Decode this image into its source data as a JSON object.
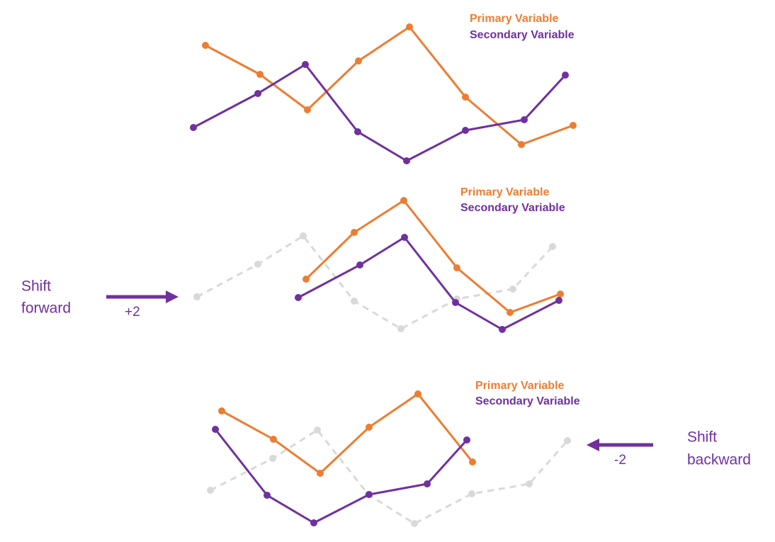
{
  "panels": [
    {
      "legend": [
        "Primary Variable",
        "Secondary Variable"
      ]
    },
    {
      "legend": [
        "Primary Variable",
        "Secondary Variable"
      ]
    },
    {
      "legend": [
        "Primary Variable",
        "Secondary Variable"
      ]
    }
  ],
  "shifts": [
    {
      "label": [
        "Shift",
        "forward"
      ],
      "amount": "+2"
    },
    {
      "label": [
        "Shift",
        "backward"
      ],
      "amount": "-2"
    }
  ]
}
